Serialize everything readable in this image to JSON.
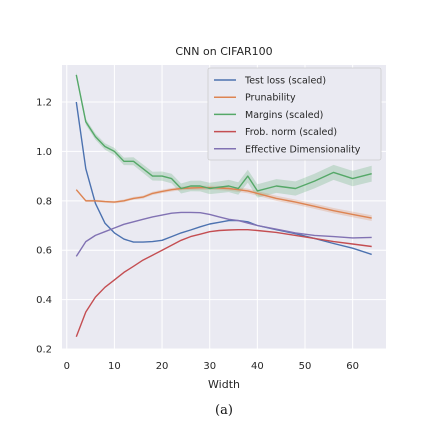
{
  "chart_data": {
    "type": "line",
    "title": "CNN on CIFAR100",
    "xlabel": "Width",
    "ylabel": "",
    "caption": "(a)",
    "xlim": [
      -1,
      67
    ],
    "ylim": [
      0.2,
      1.35
    ],
    "xticks": [
      0,
      10,
      20,
      30,
      40,
      50,
      60
    ],
    "yticks": [
      0.2,
      0.4,
      0.6,
      0.8,
      1.0,
      1.2
    ],
    "ytick_labels": [
      "0.2",
      "0.4",
      "0.6",
      "0.8",
      "1.0",
      "1.2"
    ],
    "grid": true,
    "background": "#eaeaf2",
    "legend_position": "top-right",
    "series": [
      {
        "name": "Test loss (scaled)",
        "color": "#4c72b0",
        "x": [
          2,
          4,
          6,
          8,
          10,
          12,
          14,
          16,
          18,
          20,
          22,
          24,
          26,
          28,
          30,
          32,
          34,
          36,
          38,
          40,
          44,
          48,
          52,
          56,
          60,
          64
        ],
        "y": [
          1.2,
          0.93,
          0.79,
          0.71,
          0.67,
          0.645,
          0.633,
          0.633,
          0.635,
          0.64,
          0.655,
          0.67,
          0.682,
          0.695,
          0.706,
          0.713,
          0.72,
          0.72,
          0.715,
          0.7,
          0.683,
          0.667,
          0.648,
          0.627,
          0.608,
          0.583
        ]
      },
      {
        "name": "Prunability",
        "color": "#dd8452",
        "x": [
          2,
          4,
          6,
          8,
          10,
          12,
          14,
          16,
          18,
          20,
          22,
          24,
          26,
          28,
          30,
          32,
          34,
          36,
          38,
          40,
          44,
          48,
          52,
          56,
          60,
          64
        ],
        "y": [
          0.845,
          0.8,
          0.8,
          0.797,
          0.795,
          0.8,
          0.81,
          0.815,
          0.83,
          0.838,
          0.845,
          0.85,
          0.852,
          0.853,
          0.853,
          0.852,
          0.85,
          0.845,
          0.84,
          0.83,
          0.81,
          0.795,
          0.778,
          0.76,
          0.745,
          0.73
        ]
      },
      {
        "name": "Margins (scaled)",
        "color": "#55a868",
        "x": [
          2,
          4,
          6,
          8,
          10,
          12,
          14,
          16,
          18,
          20,
          22,
          24,
          26,
          28,
          30,
          32,
          34,
          36,
          38,
          40,
          44,
          48,
          52,
          56,
          60,
          64
        ],
        "y": [
          1.31,
          1.12,
          1.06,
          1.02,
          1.0,
          0.96,
          0.96,
          0.93,
          0.9,
          0.9,
          0.89,
          0.85,
          0.86,
          0.86,
          0.85,
          0.855,
          0.86,
          0.85,
          0.9,
          0.84,
          0.86,
          0.85,
          0.88,
          0.915,
          0.89,
          0.91
        ]
      },
      {
        "name": "Frob. norm (scaled)",
        "color": "#c44e52",
        "x": [
          2,
          4,
          6,
          8,
          10,
          12,
          14,
          16,
          18,
          20,
          22,
          24,
          26,
          28,
          30,
          32,
          34,
          36,
          38,
          40,
          44,
          48,
          52,
          56,
          60,
          64
        ],
        "y": [
          0.25,
          0.35,
          0.41,
          0.45,
          0.48,
          0.51,
          0.535,
          0.56,
          0.58,
          0.6,
          0.62,
          0.64,
          0.655,
          0.665,
          0.675,
          0.68,
          0.682,
          0.683,
          0.683,
          0.68,
          0.672,
          0.66,
          0.648,
          0.635,
          0.625,
          0.615
        ]
      },
      {
        "name": "Effective Dimensionality",
        "color": "#8172b3",
        "x": [
          2,
          4,
          6,
          8,
          10,
          12,
          14,
          16,
          18,
          20,
          22,
          24,
          26,
          28,
          30,
          32,
          34,
          36,
          38,
          40,
          44,
          48,
          52,
          56,
          60,
          64
        ],
        "y": [
          0.575,
          0.635,
          0.66,
          0.675,
          0.69,
          0.705,
          0.715,
          0.725,
          0.735,
          0.742,
          0.75,
          0.753,
          0.753,
          0.752,
          0.745,
          0.735,
          0.725,
          0.72,
          0.71,
          0.7,
          0.685,
          0.67,
          0.66,
          0.655,
          0.65,
          0.652
        ]
      }
    ]
  }
}
